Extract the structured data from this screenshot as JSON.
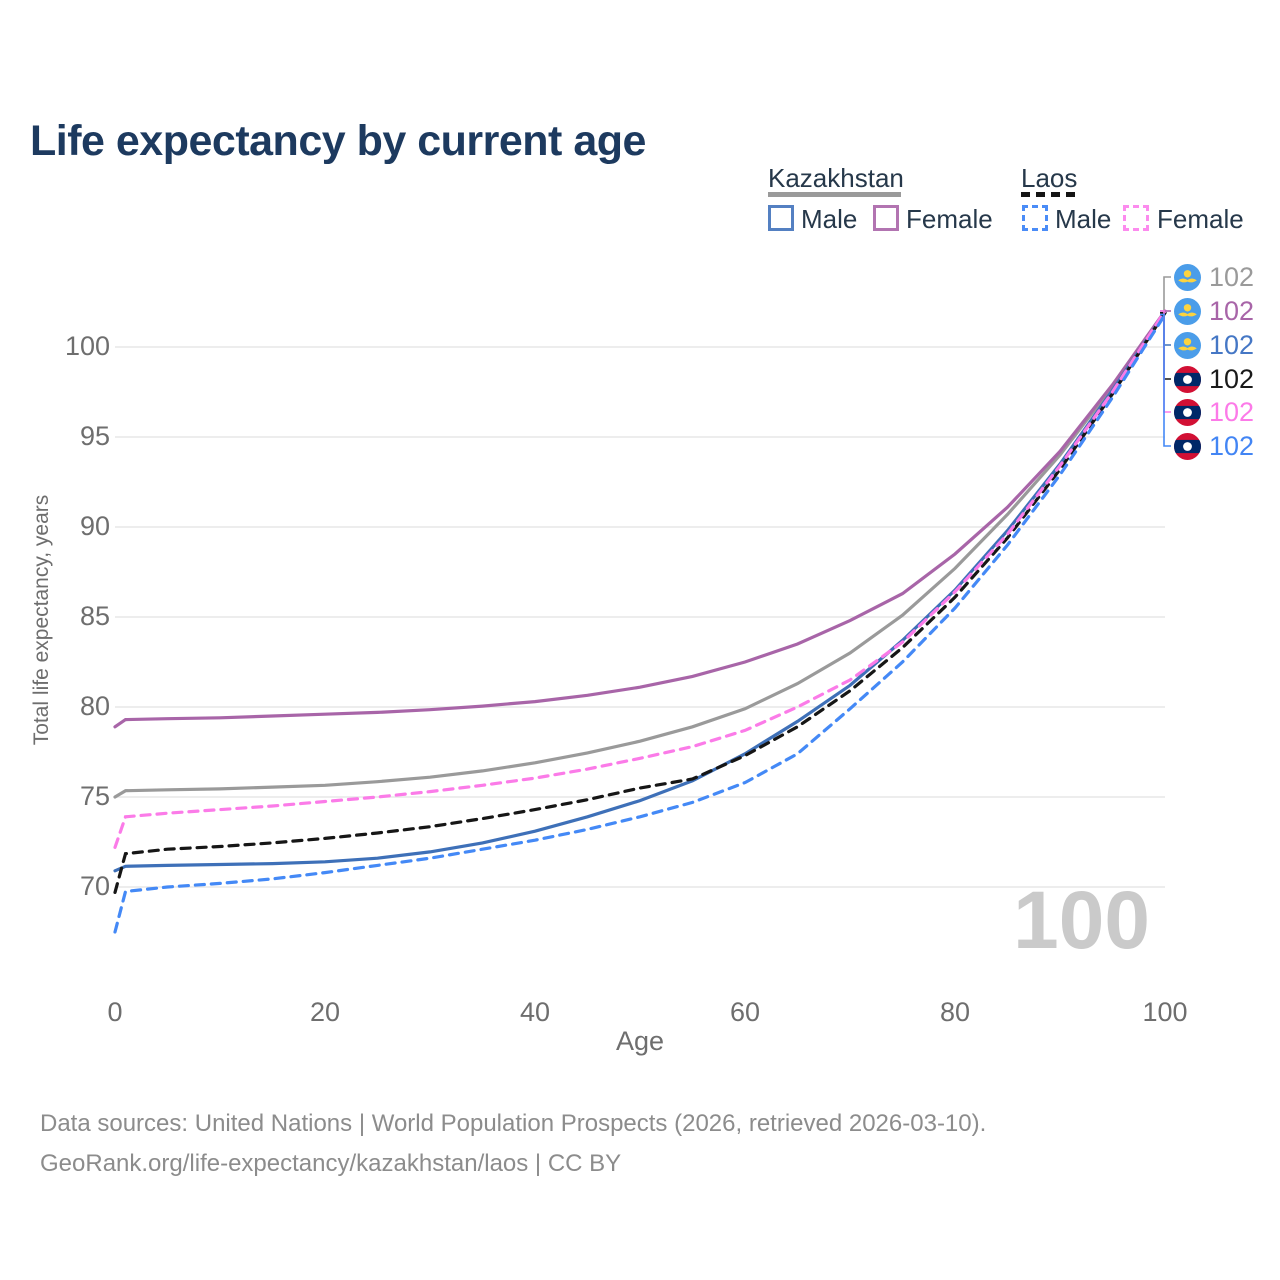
{
  "page": {
    "title": "Life expectancy by current age"
  },
  "legend": {
    "groups": [
      {
        "country": "Kazakhstan",
        "line_style": "solid",
        "line_color": "#9a9a9a",
        "items": [
          {
            "label": "Male",
            "color": "#3e70b8"
          },
          {
            "label": "Female",
            "color": "#a865a8"
          }
        ]
      },
      {
        "country": "Laos",
        "line_style": "dashed",
        "line_color": "#141414",
        "items": [
          {
            "label": "Male",
            "color": "#4489f6"
          },
          {
            "label": "Female",
            "color": "#fb7be8"
          }
        ]
      }
    ]
  },
  "watermark_age": "100",
  "footer": {
    "line1": "Data sources: United Nations | World Population Prospects (2026, retrieved 2026-03-10).",
    "line2": "GeoRank.org/life-expectancy/kazakhstan/laos | CC BY"
  },
  "chart_data": {
    "type": "line",
    "title": "Life expectancy by current age",
    "xlabel": "Age",
    "ylabel": "Total life expectancy, years",
    "xlim": [
      0,
      100
    ],
    "ylim": [
      66,
      103
    ],
    "x_ticks": [
      0,
      20,
      40,
      60,
      80,
      100
    ],
    "y_ticks": [
      70,
      75,
      80,
      85,
      90,
      95,
      100
    ],
    "grid": true,
    "legend_position": "top-right",
    "ages": [
      0,
      1,
      5,
      10,
      15,
      20,
      25,
      30,
      35,
      40,
      45,
      50,
      55,
      60,
      65,
      70,
      75,
      80,
      85,
      90,
      95,
      100
    ],
    "series": [
      {
        "name": "Kazakhstan All",
        "country": "Kazakhstan",
        "sex": "All",
        "flag": "kz",
        "color": "#9a9a9a",
        "label_color": "#9a9a9a",
        "dash": "solid",
        "end_label": "102",
        "values": [
          75.0,
          75.35,
          75.4,
          75.45,
          75.55,
          75.65,
          75.85,
          76.1,
          76.45,
          76.9,
          77.45,
          78.1,
          78.9,
          79.9,
          81.3,
          83.0,
          85.1,
          87.7,
          90.7,
          94.0,
          97.8,
          101.9
        ]
      },
      {
        "name": "Kazakhstan Female",
        "country": "Kazakhstan",
        "sex": "Female",
        "flag": "kz",
        "color": "#a865a8",
        "label_color": "#a865a8",
        "dash": "solid",
        "end_label": "102",
        "values": [
          78.9,
          79.3,
          79.35,
          79.4,
          79.5,
          79.6,
          79.7,
          79.85,
          80.05,
          80.3,
          80.65,
          81.1,
          81.7,
          82.5,
          83.5,
          84.8,
          86.3,
          88.5,
          91.1,
          94.2,
          97.9,
          102.0
        ]
      },
      {
        "name": "Kazakhstan Male",
        "country": "Kazakhstan",
        "sex": "Male",
        "flag": "kz",
        "color": "#3e70b8",
        "label_color": "#4577c5",
        "dash": "solid",
        "end_label": "102",
        "values": [
          70.9,
          71.15,
          71.2,
          71.25,
          71.3,
          71.4,
          71.6,
          71.95,
          72.45,
          73.1,
          73.9,
          74.8,
          75.9,
          77.4,
          79.2,
          81.2,
          83.7,
          86.5,
          89.8,
          93.5,
          97.6,
          101.9
        ]
      },
      {
        "name": "Laos All",
        "country": "Laos",
        "sex": "All",
        "flag": "la",
        "color": "#161616",
        "label_color": "#1a1a1a",
        "dash": "dashed",
        "end_label": "102",
        "values": [
          69.7,
          71.85,
          72.1,
          72.25,
          72.45,
          72.7,
          73.0,
          73.35,
          73.8,
          74.3,
          74.85,
          75.5,
          76.0,
          77.3,
          78.9,
          80.9,
          83.3,
          86.1,
          89.4,
          93.2,
          97.4,
          101.9
        ]
      },
      {
        "name": "Laos Female",
        "country": "Laos",
        "sex": "Female",
        "flag": "la",
        "color": "#fb7be8",
        "label_color": "#fc7ae8",
        "dash": "dashed",
        "end_label": "102",
        "values": [
          72.2,
          73.9,
          74.1,
          74.3,
          74.5,
          74.75,
          75.0,
          75.3,
          75.65,
          76.05,
          76.55,
          77.15,
          77.8,
          78.7,
          80.0,
          81.5,
          83.6,
          86.4,
          89.6,
          93.4,
          97.5,
          102.0
        ]
      },
      {
        "name": "Laos Male",
        "country": "Laos",
        "sex": "Male",
        "flag": "la",
        "color": "#4489f6",
        "label_color": "#4285f4",
        "dash": "dashed",
        "end_label": "102",
        "values": [
          67.5,
          69.75,
          70.0,
          70.2,
          70.45,
          70.8,
          71.2,
          71.6,
          72.1,
          72.6,
          73.2,
          73.9,
          74.7,
          75.8,
          77.4,
          79.9,
          82.5,
          85.5,
          89.0,
          92.9,
          97.2,
          101.8
        ]
      }
    ]
  }
}
